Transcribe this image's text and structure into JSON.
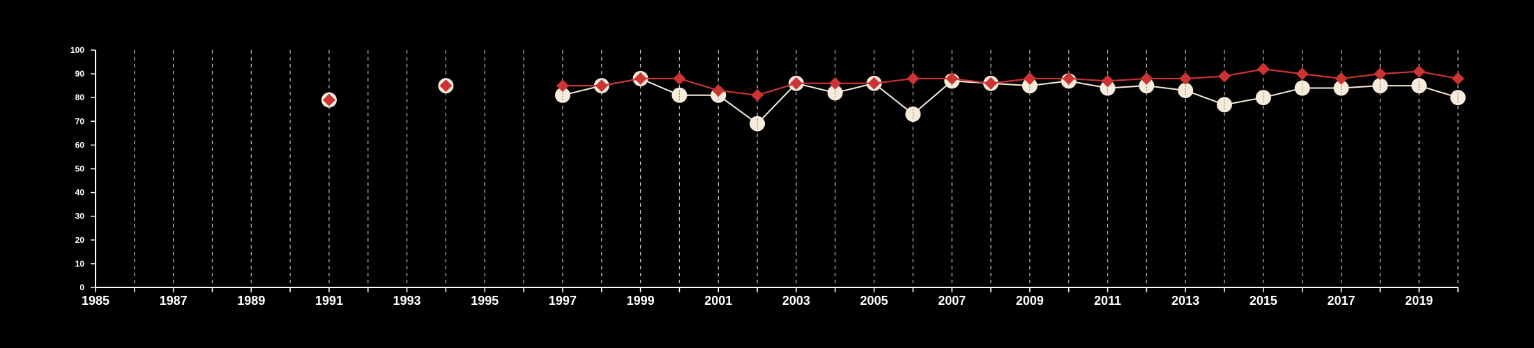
{
  "chart_data": {
    "type": "line",
    "title": "",
    "xlabel": "",
    "ylabel": "",
    "xlim": [
      1985,
      2020
    ],
    "ylim": [
      0,
      100
    ],
    "x_ticks": [
      "1985",
      "1987",
      "1989",
      "1991",
      "1993",
      "1995",
      "1997",
      "1999",
      "2001",
      "2003",
      "2005",
      "2007",
      "2009",
      "2011",
      "2013",
      "2015",
      "2017",
      "2019"
    ],
    "y_ticks": [
      "0",
      "10",
      "20",
      "30",
      "40",
      "50",
      "60",
      "70",
      "80",
      "90",
      "100"
    ],
    "grid": "vertical dashed lines at every year",
    "colors": {
      "background": "#000000",
      "axis": "#ffffff",
      "grid": "#bbbbbb",
      "series_white": "#f7ecdc",
      "series_red": "#cc3333"
    },
    "series": [
      {
        "marker": "circle",
        "color": "#f7ecdc",
        "points": [
          {
            "x": 1991,
            "y": 79
          },
          {
            "x": 1994,
            "y": 85
          },
          {
            "x": 1997,
            "y": 81
          },
          {
            "x": 1998,
            "y": 85
          },
          {
            "x": 1999,
            "y": 88
          },
          {
            "x": 2000,
            "y": 81
          },
          {
            "x": 2001,
            "y": 81
          },
          {
            "x": 2002,
            "y": 69
          },
          {
            "x": 2003,
            "y": 86
          },
          {
            "x": 2004,
            "y": 82
          },
          {
            "x": 2005,
            "y": 86
          },
          {
            "x": 2006,
            "y": 73
          },
          {
            "x": 2007,
            "y": 87
          },
          {
            "x": 2008,
            "y": 86
          },
          {
            "x": 2009,
            "y": 85
          },
          {
            "x": 2010,
            "y": 87
          },
          {
            "x": 2011,
            "y": 84
          },
          {
            "x": 2012,
            "y": 85
          },
          {
            "x": 2013,
            "y": 83
          },
          {
            "x": 2014,
            "y": 77
          },
          {
            "x": 2015,
            "y": 80
          },
          {
            "x": 2016,
            "y": 84
          },
          {
            "x": 2017,
            "y": 84
          },
          {
            "x": 2018,
            "y": 85
          },
          {
            "x": 2019,
            "y": 85
          },
          {
            "x": 2020,
            "y": 80
          }
        ]
      },
      {
        "marker": "diamond",
        "color": "#cc3333",
        "points": [
          {
            "x": 1991,
            "y": 79
          },
          {
            "x": 1994,
            "y": 85
          },
          {
            "x": 1997,
            "y": 85
          },
          {
            "x": 1998,
            "y": 85
          },
          {
            "x": 1999,
            "y": 88
          },
          {
            "x": 2000,
            "y": 88
          },
          {
            "x": 2001,
            "y": 83
          },
          {
            "x": 2002,
            "y": 81
          },
          {
            "x": 2003,
            "y": 86
          },
          {
            "x": 2004,
            "y": 86
          },
          {
            "x": 2005,
            "y": 86
          },
          {
            "x": 2006,
            "y": 88
          },
          {
            "x": 2007,
            "y": 88
          },
          {
            "x": 2008,
            "y": 86
          },
          {
            "x": 2009,
            "y": 88
          },
          {
            "x": 2010,
            "y": 88
          },
          {
            "x": 2011,
            "y": 87
          },
          {
            "x": 2012,
            "y": 88
          },
          {
            "x": 2013,
            "y": 88
          },
          {
            "x": 2014,
            "y": 89
          },
          {
            "x": 2015,
            "y": 92
          },
          {
            "x": 2016,
            "y": 90
          },
          {
            "x": 2017,
            "y": 88
          },
          {
            "x": 2018,
            "y": 90
          },
          {
            "x": 2019,
            "y": 91
          },
          {
            "x": 2020,
            "y": 88
          }
        ]
      }
    ]
  }
}
